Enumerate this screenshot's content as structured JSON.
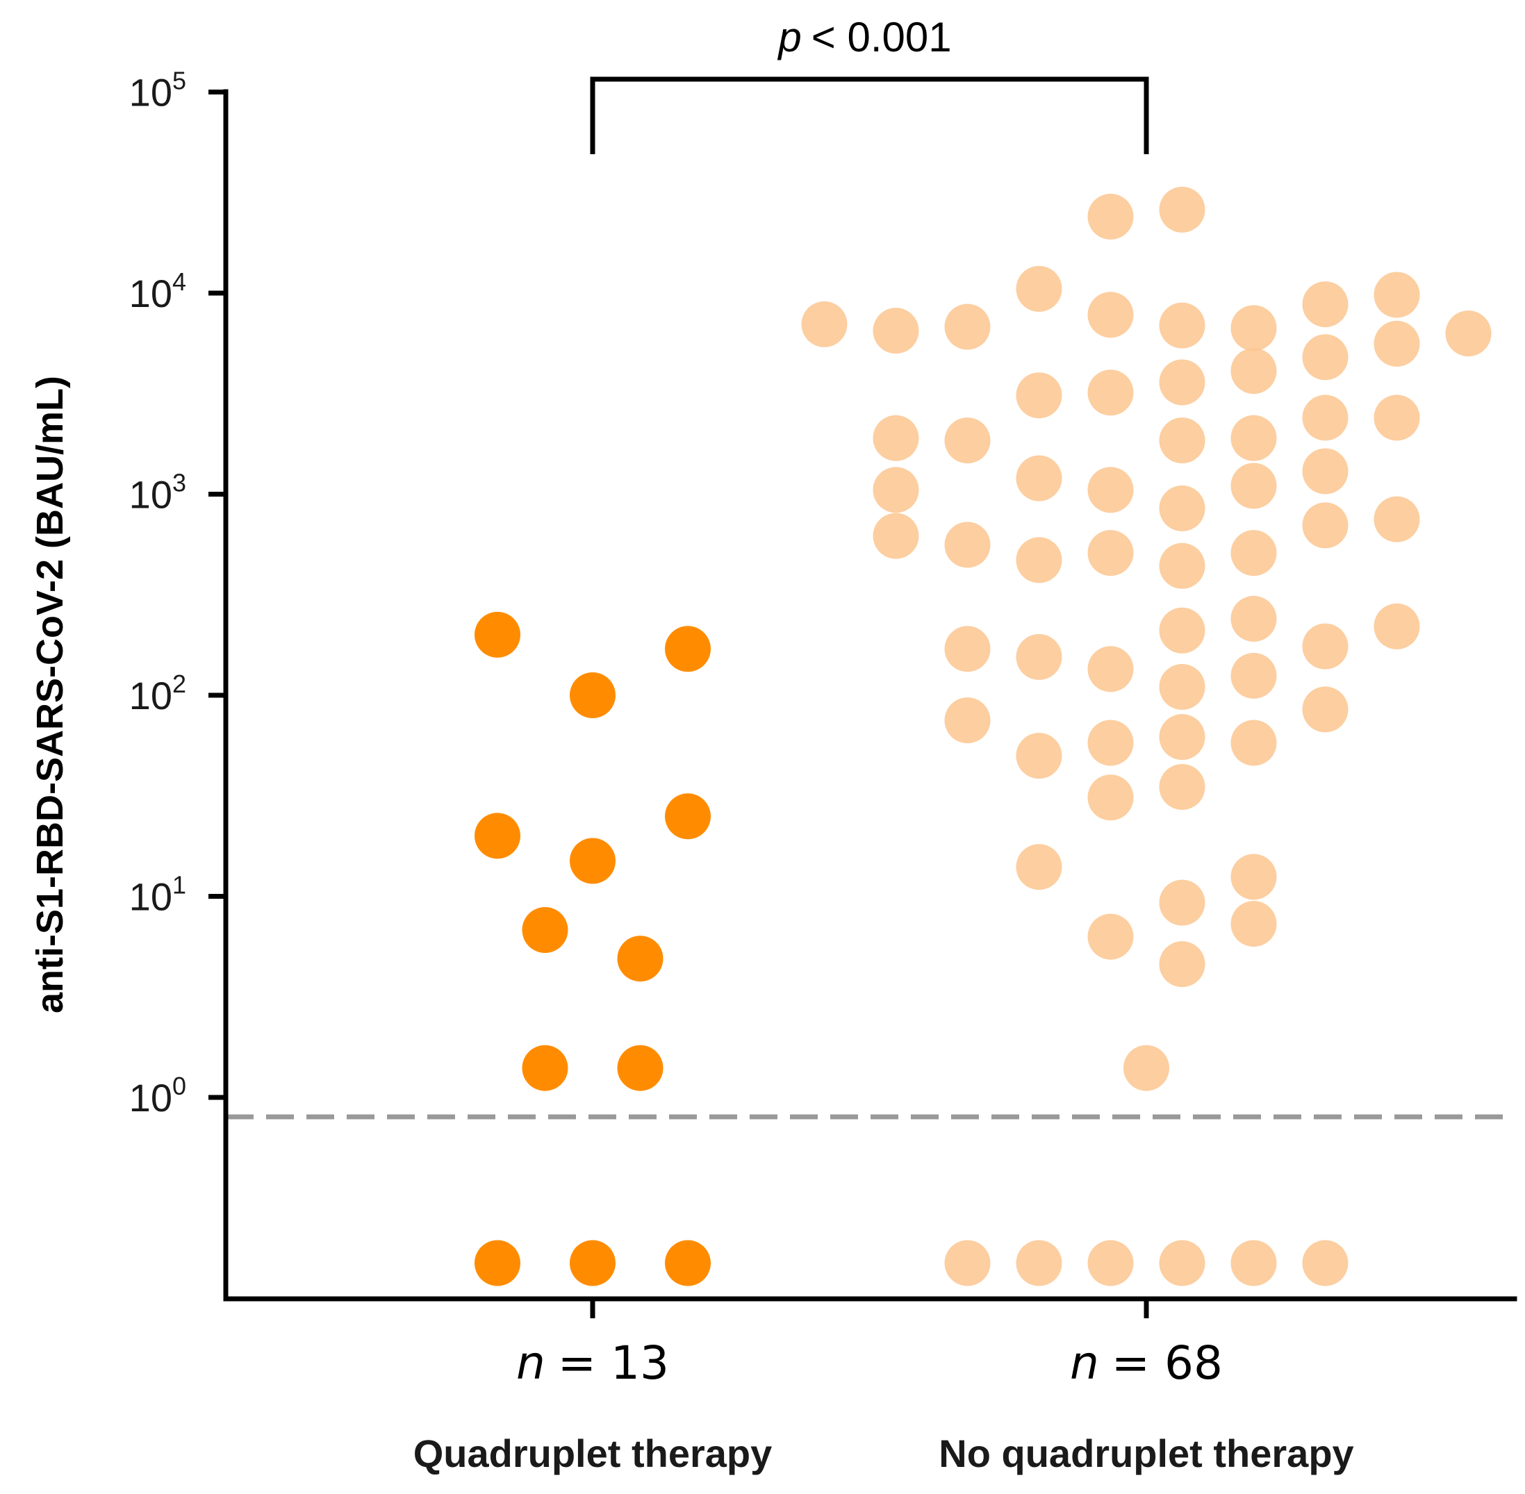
{
  "chart_data": {
    "type": "scatter",
    "title": "",
    "xlabel": "",
    "ylabel": "anti-S1-RBD-SARS-CoV-2 (BAU/mL)",
    "yscale": "log",
    "ylim": [
      0.08,
      100000
    ],
    "yticks": [
      {
        "base": "10",
        "exp": "0",
        "value": 1
      },
      {
        "base": "10",
        "exp": "1",
        "value": 10
      },
      {
        "base": "10",
        "exp": "2",
        "value": 100
      },
      {
        "base": "10",
        "exp": "3",
        "value": 1000
      },
      {
        "base": "10",
        "exp": "4",
        "value": 10000
      },
      {
        "base": "10",
        "exp": "5",
        "value": 100000
      }
    ],
    "detection_limit": 0.8,
    "significance": {
      "p_symbol": "p",
      "p_text": "< 0.001"
    },
    "series": [
      {
        "name": "Quadruplet therapy",
        "n_symbol": "n",
        "n_text": "= 13",
        "color": "#ff8c00",
        "opacity": 1.0,
        "points": [
          {
            "value": 200,
            "offset": -1
          },
          {
            "value": 170,
            "offset": 1
          },
          {
            "value": 100,
            "offset": 0
          },
          {
            "value": 25,
            "offset": 1
          },
          {
            "value": 20,
            "offset": -1
          },
          {
            "value": 15,
            "offset": 0
          },
          {
            "value": 6.8,
            "offset": -0.5
          },
          {
            "value": 4.9,
            "offset": 0.5
          },
          {
            "value": 1.4,
            "offset": -0.5
          },
          {
            "value": 1.4,
            "offset": 0.5
          },
          {
            "value": 0.15,
            "offset": -1
          },
          {
            "value": 0.15,
            "offset": 0
          },
          {
            "value": 0.15,
            "offset": 1
          }
        ]
      },
      {
        "name": "No quadruplet therapy",
        "n_symbol": "n",
        "n_text": "= 68",
        "color": "#fcc58f",
        "opacity": 0.85,
        "points": [
          {
            "value": 24000,
            "offset": -0.5
          },
          {
            "value": 26000,
            "offset": 0.5
          },
          {
            "value": 7000,
            "offset": -4.5
          },
          {
            "value": 6500,
            "offset": -3.5
          },
          {
            "value": 6800,
            "offset": -2.5
          },
          {
            "value": 10500,
            "offset": -1.5
          },
          {
            "value": 7800,
            "offset": -0.5
          },
          {
            "value": 6900,
            "offset": 0.5
          },
          {
            "value": 6700,
            "offset": 1.5
          },
          {
            "value": 8800,
            "offset": 2.5
          },
          {
            "value": 9800,
            "offset": 3.5
          },
          {
            "value": 6300,
            "offset": 4.5
          },
          {
            "value": 5600,
            "offset": 3.5
          },
          {
            "value": 4800,
            "offset": 2.5
          },
          {
            "value": 4100,
            "offset": 1.5
          },
          {
            "value": 3600,
            "offset": 0.5
          },
          {
            "value": 3200,
            "offset": -0.5
          },
          {
            "value": 3100,
            "offset": -1.5
          },
          {
            "value": 1900,
            "offset": -3.5
          },
          {
            "value": 1850,
            "offset": -2.5
          },
          {
            "value": 1850,
            "offset": 0.5
          },
          {
            "value": 1900,
            "offset": 1.5
          },
          {
            "value": 2400,
            "offset": 2.5
          },
          {
            "value": 2400,
            "offset": 3.5
          },
          {
            "value": 1300,
            "offset": 2.5
          },
          {
            "value": 1100,
            "offset": 1.5
          },
          {
            "value": 1200,
            "offset": -1.5
          },
          {
            "value": 1050,
            "offset": -0.5
          },
          {
            "value": 1050,
            "offset": -3.5
          },
          {
            "value": 850,
            "offset": 0.5
          },
          {
            "value": 700,
            "offset": 2.5
          },
          {
            "value": 750,
            "offset": 3.5
          },
          {
            "value": 620,
            "offset": -3.5
          },
          {
            "value": 560,
            "offset": -2.5
          },
          {
            "value": 470,
            "offset": -1.5
          },
          {
            "value": 510,
            "offset": -0.5
          },
          {
            "value": 440,
            "offset": 0.5
          },
          {
            "value": 510,
            "offset": 1.5
          },
          {
            "value": 240,
            "offset": 1.5
          },
          {
            "value": 210,
            "offset": 0.5
          },
          {
            "value": 220,
            "offset": 3.5
          },
          {
            "value": 175,
            "offset": 2.5
          },
          {
            "value": 170,
            "offset": -2.5
          },
          {
            "value": 155,
            "offset": -1.5
          },
          {
            "value": 135,
            "offset": -0.5
          },
          {
            "value": 125,
            "offset": 1.5
          },
          {
            "value": 110,
            "offset": 0.5
          },
          {
            "value": 85,
            "offset": 2.5
          },
          {
            "value": 75,
            "offset": -2.5
          },
          {
            "value": 62,
            "offset": 0.5
          },
          {
            "value": 58,
            "offset": 1.5
          },
          {
            "value": 58,
            "offset": -0.5
          },
          {
            "value": 50,
            "offset": -1.5
          },
          {
            "value": 35,
            "offset": 0.5
          },
          {
            "value": 31,
            "offset": -0.5
          },
          {
            "value": 14,
            "offset": -1.5
          },
          {
            "value": 12.5,
            "offset": 1.5
          },
          {
            "value": 9.3,
            "offset": 0.5
          },
          {
            "value": 7.3,
            "offset": 1.5
          },
          {
            "value": 6.3,
            "offset": -0.5
          },
          {
            "value": 4.6,
            "offset": 0.5
          },
          {
            "value": 1.4,
            "offset": 0
          },
          {
            "value": 0.15,
            "offset": -2.5
          },
          {
            "value": 0.15,
            "offset": -1.5
          },
          {
            "value": 0.15,
            "offset": -0.5
          },
          {
            "value": 0.15,
            "offset": 0.5
          },
          {
            "value": 0.15,
            "offset": 1.5
          },
          {
            "value": 0.15,
            "offset": 2.5
          }
        ]
      }
    ]
  }
}
